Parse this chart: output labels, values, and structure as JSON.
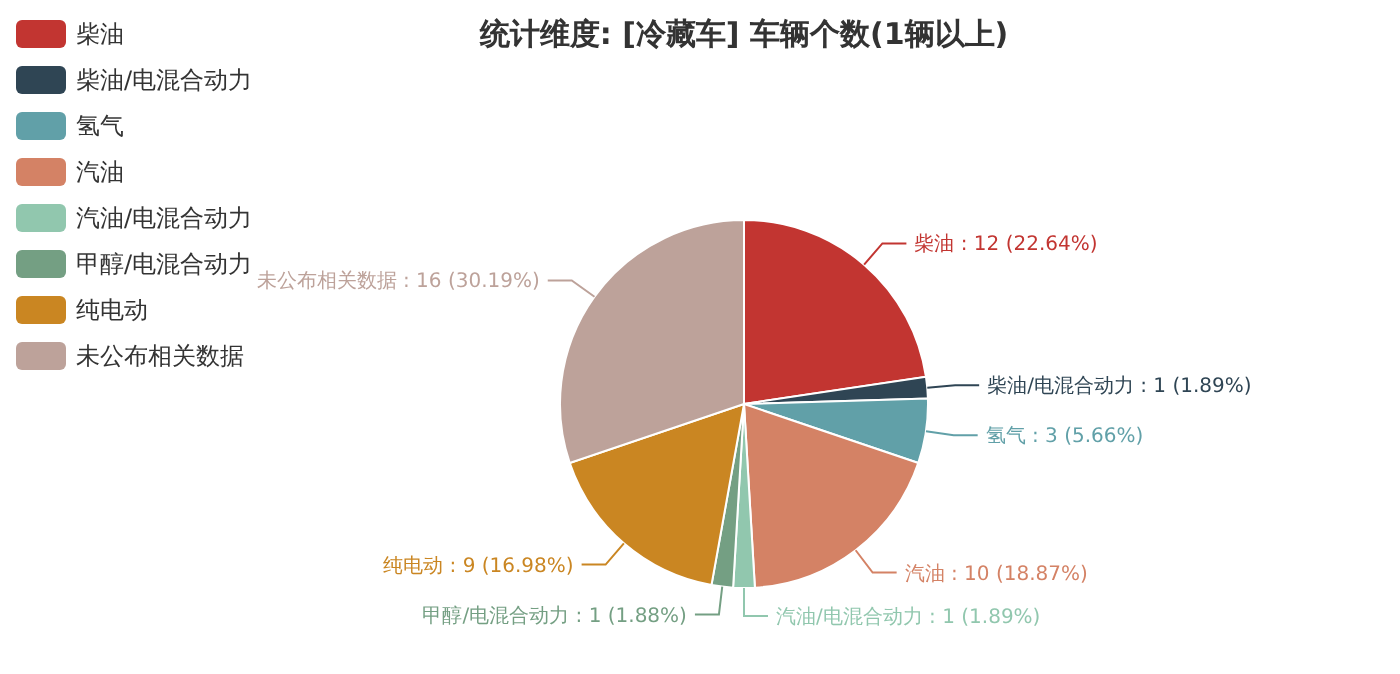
{
  "chart_data": {
    "type": "pie",
    "title": "统计维度: [冷藏车] 车辆个数(1辆以上)",
    "categories": [
      "柴油",
      "柴油/电混合动力",
      "氢气",
      "汽油",
      "汽油/电混合动力",
      "甲醇/电混合动力",
      "纯电动",
      "未公布相关数据"
    ],
    "values": [
      12,
      1,
      3,
      10,
      1,
      1,
      9,
      16
    ],
    "value_labels": [
      ": 12 (22.64%)",
      ": 1 (1.89%)",
      ": 3 (5.66%)",
      ": 10 (18.87%)",
      ": 1 (1.89%)",
      ": 1 (1.88%)",
      ": 9 (16.98%)",
      ": 16 (30.19%)"
    ],
    "colors": [
      "#c23531",
      "#2f4554",
      "#61a0a8",
      "#d48265",
      "#91c7ae",
      "#749f83",
      "#ca8622",
      "#bda29a"
    ],
    "legend": "top left"
  }
}
